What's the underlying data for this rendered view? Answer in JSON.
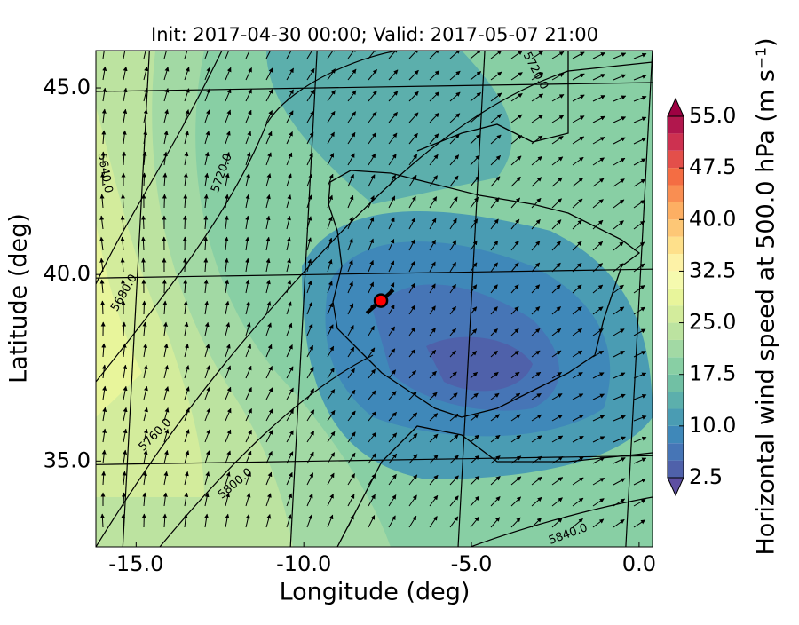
{
  "chart_data": {
    "type": "map",
    "title": "Init: 2017-04-30 00:00; Valid: 2017-05-07 21:00",
    "x_label": "Longitude (deg)",
    "y_label": "Latitude (deg)",
    "xlim": [
      -16.2,
      0.4
    ],
    "ylim": [
      32.7,
      46.0
    ],
    "xticks": [
      {
        "value": -15,
        "label": "-15.0"
      },
      {
        "value": -10,
        "label": "-10.0"
      },
      {
        "value": -5,
        "label": "-5.0"
      },
      {
        "value": 0,
        "label": "0.0"
      }
    ],
    "yticks": [
      {
        "value": 35,
        "label": "35.0"
      },
      {
        "value": 40,
        "label": "40.0"
      },
      {
        "value": 45,
        "label": "45.0"
      }
    ],
    "colorbar": {
      "label": "Horizontal wind speed at 500.0 hPa (m s⁻¹)",
      "lim": [
        2.5,
        55
      ],
      "ticks": [
        2.5,
        {
          "value": 10,
          "label": "10.0"
        },
        17.5,
        {
          "value": 25,
          "label": "25.0"
        },
        32.5,
        {
          "value": 40,
          "label": "40.0"
        },
        47.5,
        {
          "value": 55,
          "label": "55.0"
        }
      ],
      "levels": [
        2.5,
        5,
        7.5,
        10,
        12.5,
        15,
        17.5,
        20,
        22.5,
        25,
        27.5,
        30,
        32.5,
        35,
        37.5,
        40,
        42.5,
        45,
        47.5,
        50,
        52.5,
        55
      ],
      "colors": [
        "#4f61aa",
        "#4675b6",
        "#3f88b9",
        "#4a9cb3",
        "#5cafac",
        "#71c0a4",
        "#88cfa4",
        "#a2d9a4",
        "#bce3a0",
        "#d3ec9c",
        "#e8f59b",
        "#f5faae",
        "#fdf2a7",
        "#fee08b",
        "#fdc776",
        "#fdaf63",
        "#f98e52",
        "#f46d43",
        "#e34f4a",
        "#cd3150",
        "#b1174d"
      ],
      "under_color": "#5e4fa2",
      "over_color": "#9e0142"
    },
    "contour_labels": [
      "5720.0",
      "5640.0",
      "5720.0",
      "5680.0",
      "5760.0",
      "5800.0",
      "5840.0"
    ],
    "marker": {
      "x": -7.7,
      "y": 39.3,
      "color": "#ff0000"
    }
  }
}
